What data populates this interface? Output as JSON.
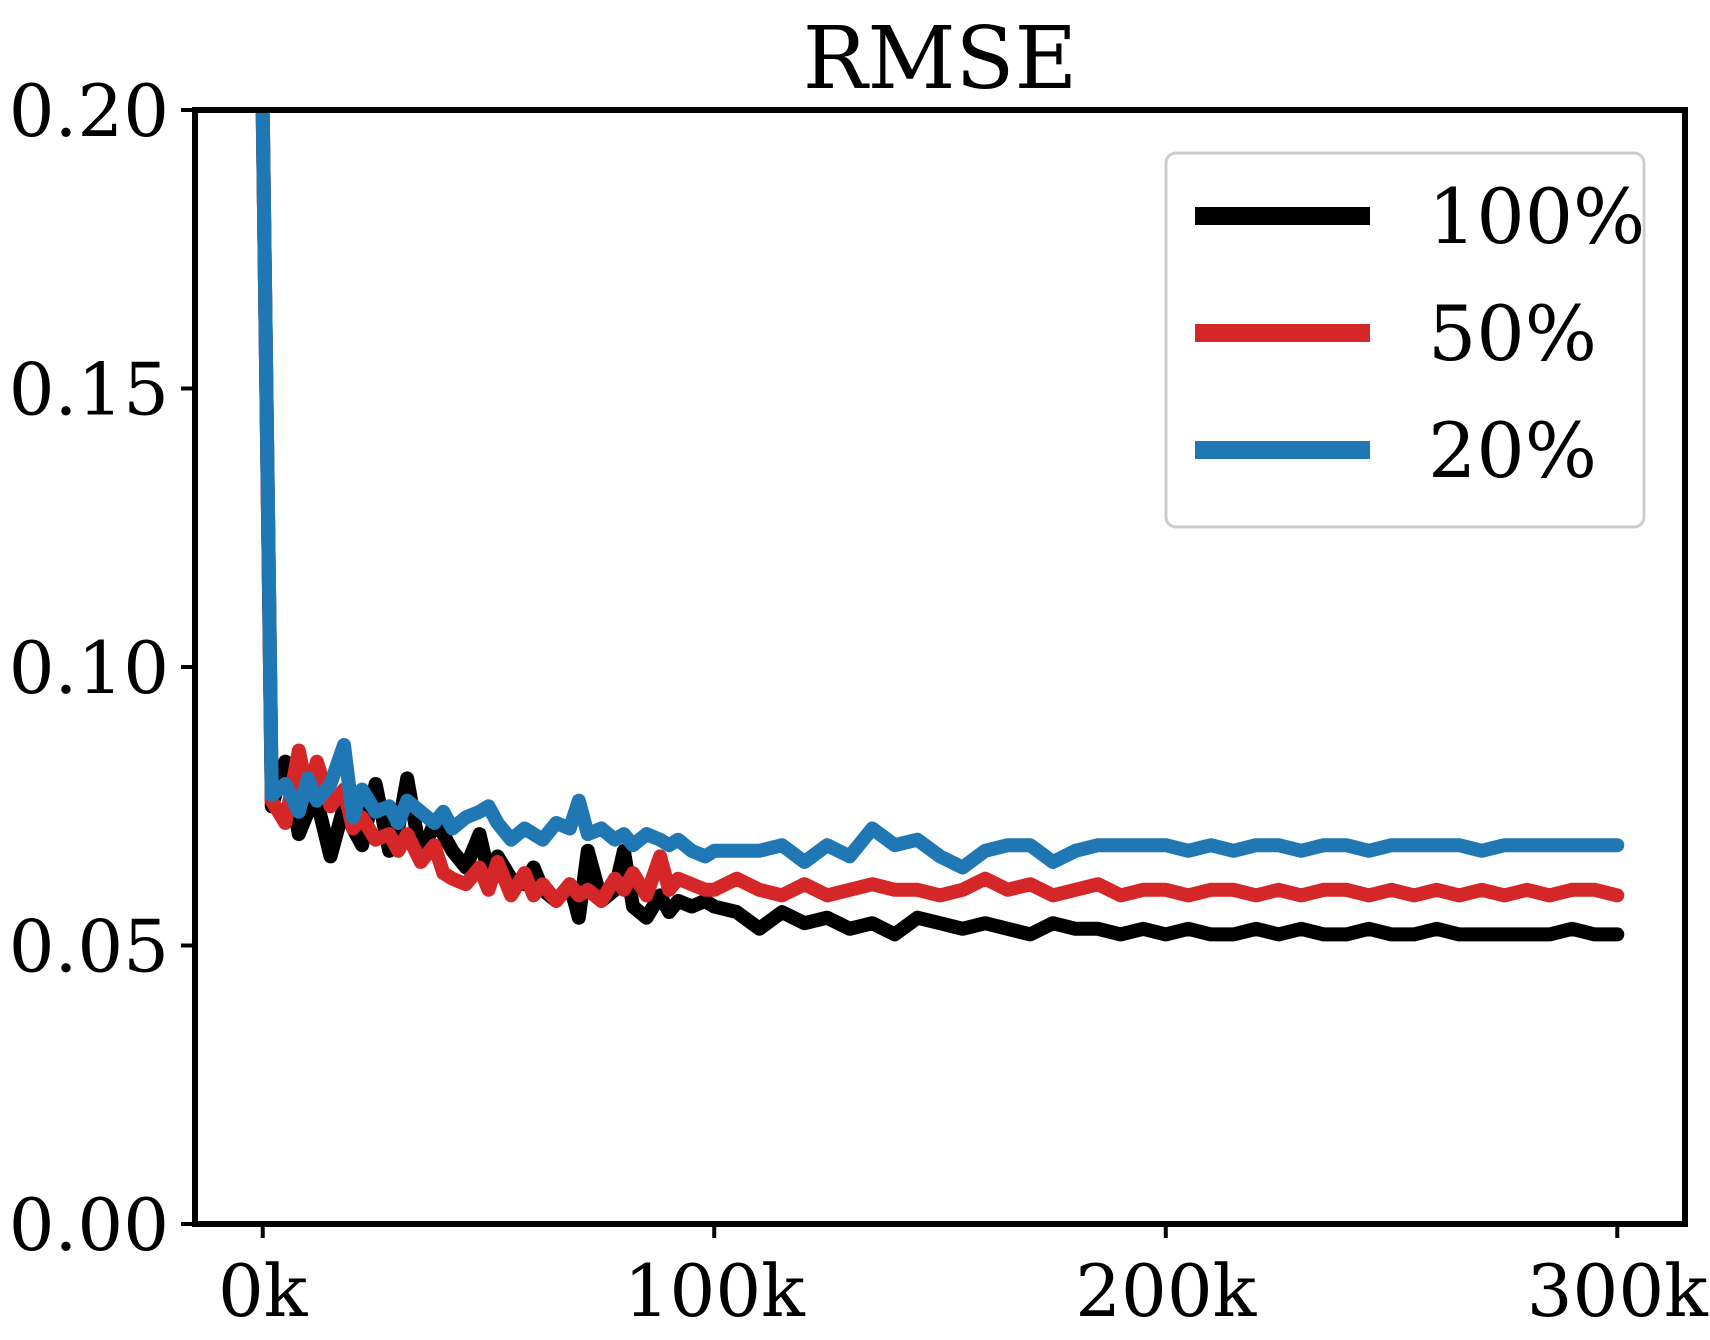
{
  "chart_data": {
    "type": "line",
    "title": "RMSE",
    "xlabel": "",
    "ylabel": "",
    "xlim": [
      -15000,
      315000
    ],
    "ylim": [
      0.0,
      0.2
    ],
    "x_ticks": [
      0,
      100000,
      200000,
      300000
    ],
    "x_tick_labels": [
      "0k",
      "100k",
      "200k",
      "300k"
    ],
    "y_ticks": [
      0.0,
      0.05,
      0.1,
      0.15,
      0.2
    ],
    "y_tick_labels": [
      "0.00",
      "0.05",
      "0.10",
      "0.15",
      "0.20"
    ],
    "grid": false,
    "legend_position": "top-right",
    "series": [
      {
        "name": "100%",
        "color": "#000000",
        "x": [
          0,
          2000,
          5000,
          8000,
          10000,
          12000,
          15000,
          18000,
          20000,
          22000,
          25000,
          28000,
          30000,
          32000,
          35000,
          38000,
          40000,
          42000,
          45000,
          48000,
          50000,
          52000,
          55000,
          58000,
          60000,
          62000,
          65000,
          68000,
          70000,
          72000,
          75000,
          78000,
          80000,
          82000,
          85000,
          88000,
          90000,
          92000,
          95000,
          98000,
          100000,
          105000,
          110000,
          115000,
          120000,
          125000,
          130000,
          135000,
          140000,
          145000,
          150000,
          155000,
          160000,
          165000,
          170000,
          175000,
          180000,
          185000,
          190000,
          195000,
          200000,
          205000,
          210000,
          215000,
          220000,
          225000,
          230000,
          235000,
          240000,
          245000,
          250000,
          255000,
          260000,
          265000,
          270000,
          275000,
          280000,
          285000,
          290000,
          295000,
          300000
        ],
        "values": [
          0.2,
          0.075,
          0.083,
          0.07,
          0.074,
          0.076,
          0.066,
          0.075,
          0.071,
          0.068,
          0.079,
          0.067,
          0.071,
          0.08,
          0.066,
          0.072,
          0.07,
          0.067,
          0.064,
          0.07,
          0.063,
          0.066,
          0.062,
          0.061,
          0.064,
          0.06,
          0.058,
          0.061,
          0.055,
          0.067,
          0.058,
          0.06,
          0.067,
          0.057,
          0.055,
          0.059,
          0.056,
          0.058,
          0.057,
          0.058,
          0.057,
          0.056,
          0.053,
          0.056,
          0.054,
          0.055,
          0.053,
          0.054,
          0.052,
          0.055,
          0.054,
          0.053,
          0.054,
          0.053,
          0.052,
          0.054,
          0.053,
          0.053,
          0.052,
          0.053,
          0.052,
          0.053,
          0.052,
          0.052,
          0.053,
          0.052,
          0.053,
          0.052,
          0.052,
          0.053,
          0.052,
          0.052,
          0.053,
          0.052,
          0.052,
          0.052,
          0.052,
          0.052,
          0.053,
          0.052,
          0.052
        ]
      },
      {
        "name": "50%",
        "color": "#d62728",
        "x": [
          0,
          2000,
          5000,
          8000,
          10000,
          12000,
          15000,
          18000,
          20000,
          22000,
          25000,
          28000,
          30000,
          32000,
          35000,
          38000,
          40000,
          42000,
          45000,
          48000,
          50000,
          52000,
          55000,
          58000,
          60000,
          62000,
          65000,
          68000,
          70000,
          72000,
          75000,
          78000,
          80000,
          82000,
          85000,
          88000,
          90000,
          92000,
          95000,
          98000,
          100000,
          105000,
          110000,
          115000,
          120000,
          125000,
          130000,
          135000,
          140000,
          145000,
          150000,
          155000,
          160000,
          165000,
          170000,
          175000,
          180000,
          185000,
          190000,
          195000,
          200000,
          205000,
          210000,
          215000,
          220000,
          225000,
          230000,
          235000,
          240000,
          245000,
          250000,
          255000,
          260000,
          265000,
          270000,
          275000,
          280000,
          285000,
          290000,
          295000,
          300000
        ],
        "values": [
          0.2,
          0.076,
          0.072,
          0.085,
          0.077,
          0.083,
          0.075,
          0.078,
          0.071,
          0.073,
          0.069,
          0.07,
          0.067,
          0.07,
          0.065,
          0.068,
          0.063,
          0.062,
          0.061,
          0.064,
          0.06,
          0.065,
          0.059,
          0.063,
          0.059,
          0.061,
          0.058,
          0.061,
          0.059,
          0.06,
          0.058,
          0.062,
          0.06,
          0.063,
          0.059,
          0.066,
          0.06,
          0.062,
          0.061,
          0.06,
          0.06,
          0.062,
          0.06,
          0.059,
          0.061,
          0.059,
          0.06,
          0.061,
          0.06,
          0.06,
          0.059,
          0.06,
          0.062,
          0.06,
          0.061,
          0.059,
          0.06,
          0.061,
          0.059,
          0.06,
          0.06,
          0.059,
          0.06,
          0.06,
          0.059,
          0.06,
          0.059,
          0.06,
          0.06,
          0.059,
          0.06,
          0.059,
          0.06,
          0.059,
          0.06,
          0.059,
          0.06,
          0.059,
          0.06,
          0.06,
          0.059
        ]
      },
      {
        "name": "20%",
        "color": "#1f77b4",
        "x": [
          0,
          2000,
          5000,
          8000,
          10000,
          12000,
          15000,
          18000,
          20000,
          22000,
          25000,
          28000,
          30000,
          32000,
          35000,
          38000,
          40000,
          42000,
          45000,
          48000,
          50000,
          52000,
          55000,
          58000,
          60000,
          62000,
          65000,
          68000,
          70000,
          72000,
          75000,
          78000,
          80000,
          82000,
          85000,
          88000,
          90000,
          92000,
          95000,
          98000,
          100000,
          105000,
          110000,
          115000,
          120000,
          125000,
          130000,
          135000,
          140000,
          145000,
          150000,
          155000,
          160000,
          165000,
          170000,
          175000,
          180000,
          185000,
          190000,
          195000,
          200000,
          205000,
          210000,
          215000,
          220000,
          225000,
          230000,
          235000,
          240000,
          245000,
          250000,
          255000,
          260000,
          265000,
          270000,
          275000,
          280000,
          285000,
          290000,
          295000,
          300000
        ],
        "values": [
          0.2,
          0.077,
          0.079,
          0.074,
          0.08,
          0.076,
          0.079,
          0.086,
          0.073,
          0.078,
          0.074,
          0.075,
          0.072,
          0.076,
          0.074,
          0.072,
          0.074,
          0.071,
          0.073,
          0.074,
          0.075,
          0.072,
          0.069,
          0.071,
          0.07,
          0.069,
          0.072,
          0.071,
          0.076,
          0.07,
          0.071,
          0.069,
          0.07,
          0.068,
          0.07,
          0.069,
          0.068,
          0.069,
          0.067,
          0.066,
          0.067,
          0.067,
          0.067,
          0.068,
          0.065,
          0.068,
          0.066,
          0.071,
          0.068,
          0.069,
          0.066,
          0.064,
          0.067,
          0.068,
          0.068,
          0.065,
          0.067,
          0.068,
          0.068,
          0.068,
          0.068,
          0.067,
          0.068,
          0.067,
          0.068,
          0.068,
          0.067,
          0.068,
          0.068,
          0.067,
          0.068,
          0.068,
          0.068,
          0.068,
          0.067,
          0.068,
          0.068,
          0.068,
          0.068,
          0.068,
          0.068
        ]
      }
    ]
  }
}
